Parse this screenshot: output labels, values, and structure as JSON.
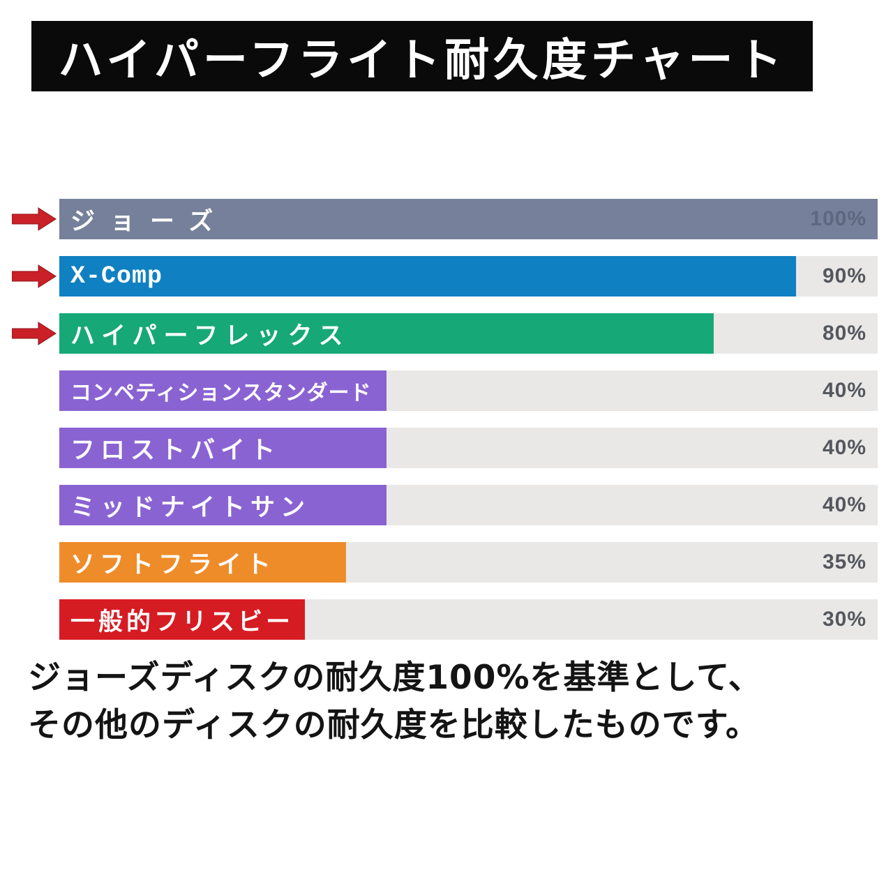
{
  "title": "ハイパーフライト耐久度チャート",
  "note": {
    "line1": "ジョーズディスクの耐久度100%を基準として、",
    "line2": "その他のディスクの耐久度を比較したものです。"
  },
  "colors": {
    "title_bg": "#0a0a0a",
    "title_text": "#ffffff",
    "track": "#e9e8e6",
    "arrow_fill": "#ca2027",
    "arrow_outline": "#8c1318",
    "percent_text": "#54575d",
    "percent_text_on_bar": "#5d6780",
    "bar_label_text": "#ffffff"
  },
  "chart_data": {
    "type": "bar",
    "orientation": "horizontal",
    "title": "ハイパーフライト耐久度チャート",
    "xlabel": "",
    "ylabel": "",
    "xlim": [
      0,
      100
    ],
    "unit": "%",
    "grid": false,
    "legend": false,
    "categories": [
      "ジョーズ",
      "X-Comp",
      "ハイパーフレックス",
      "コンペティションスタンダード",
      "フロストバイト",
      "ミッドナイトサン",
      "ソフトフライト",
      "一般的フリスビー"
    ],
    "values": [
      100,
      90,
      80,
      40,
      40,
      40,
      35,
      30
    ],
    "value_labels": [
      "100%",
      "90%",
      "80%",
      "40%",
      "40%",
      "40%",
      "35%",
      "30%"
    ],
    "bar_colors": [
      "#76809a",
      "#0f80c2",
      "#17a878",
      "#8a63d2",
      "#8a63d2",
      "#8a63d2",
      "#ee8c2a",
      "#d61c23"
    ],
    "highlighted_with_arrow": [
      true,
      true,
      true,
      false,
      false,
      false,
      false,
      false
    ],
    "annotation": "ジョーズディスクの耐久度100%を基準として、その他のディスクの耐久度を比較したものです。"
  }
}
